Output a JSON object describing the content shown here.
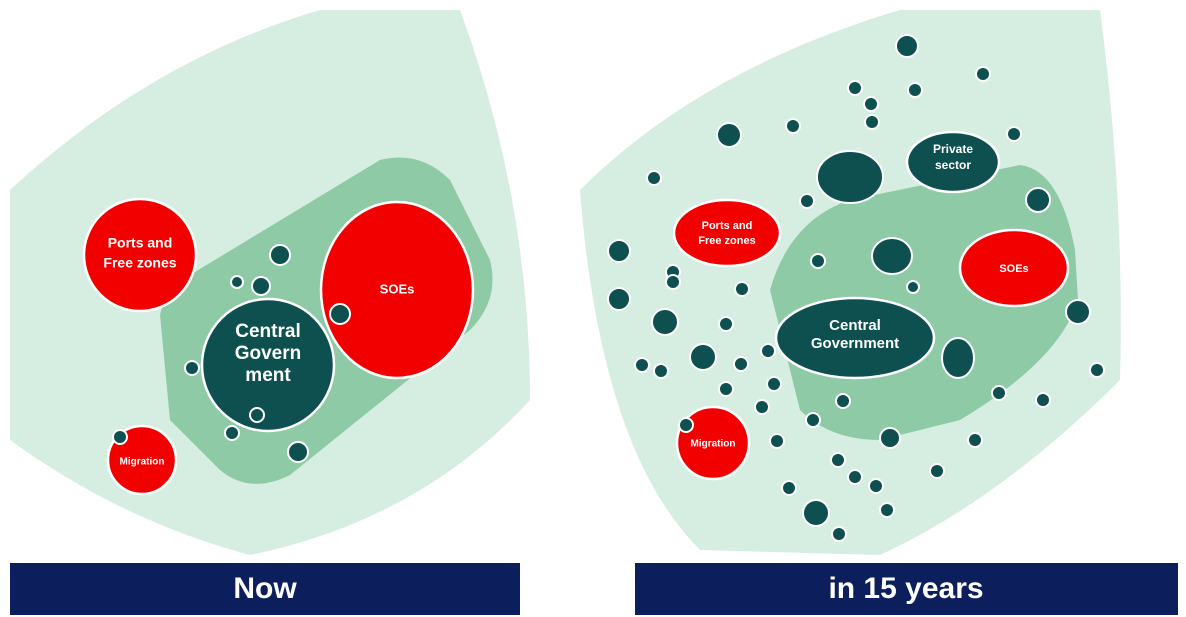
{
  "panels": [
    {
      "caption": "Now",
      "nodes": [
        {
          "lines": [
            "Ports and",
            "Free zones"
          ]
        },
        {
          "lines": [
            "SOEs"
          ]
        },
        {
          "lines": [
            "Central",
            "Govern",
            "ment"
          ]
        },
        {
          "lines": [
            "Migration"
          ]
        }
      ]
    },
    {
      "caption": "in 15 years",
      "nodes": [
        {
          "lines": [
            "Ports and",
            "Free zones"
          ]
        },
        {
          "lines": [
            "SOEs"
          ]
        },
        {
          "lines": [
            "Central",
            "Government"
          ]
        },
        {
          "lines": [
            "Migration"
          ]
        },
        {
          "lines": [
            "Private",
            "sector"
          ]
        }
      ]
    }
  ]
}
